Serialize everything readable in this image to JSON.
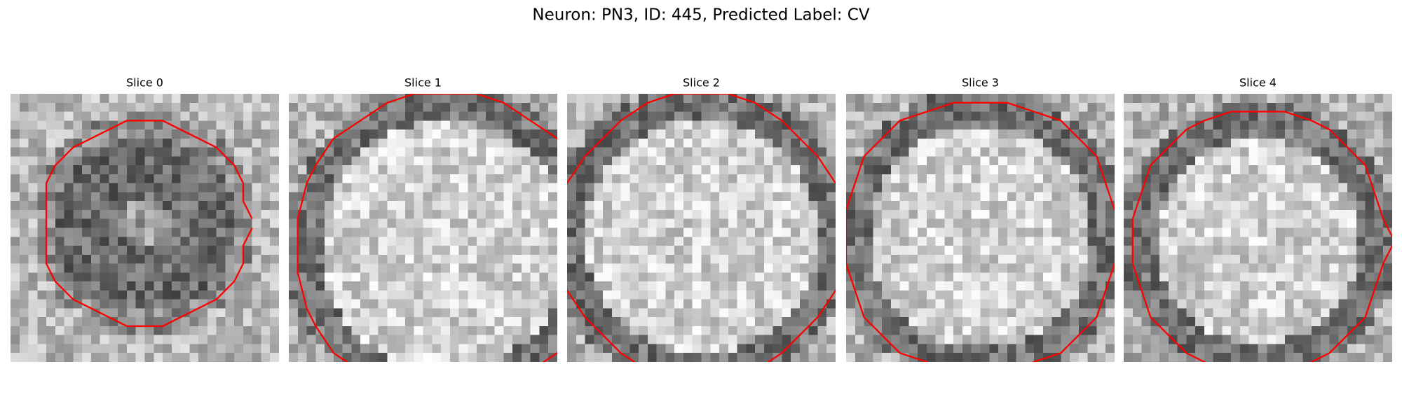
{
  "title": "Neuron: PN3, ID: 445, Predicted Label: CV",
  "panels": [
    {
      "title": "Slice 0"
    },
    {
      "title": "Slice 1"
    },
    {
      "title": "Slice 2"
    },
    {
      "title": "Slice 3"
    },
    {
      "title": "Slice 4"
    }
  ]
}
